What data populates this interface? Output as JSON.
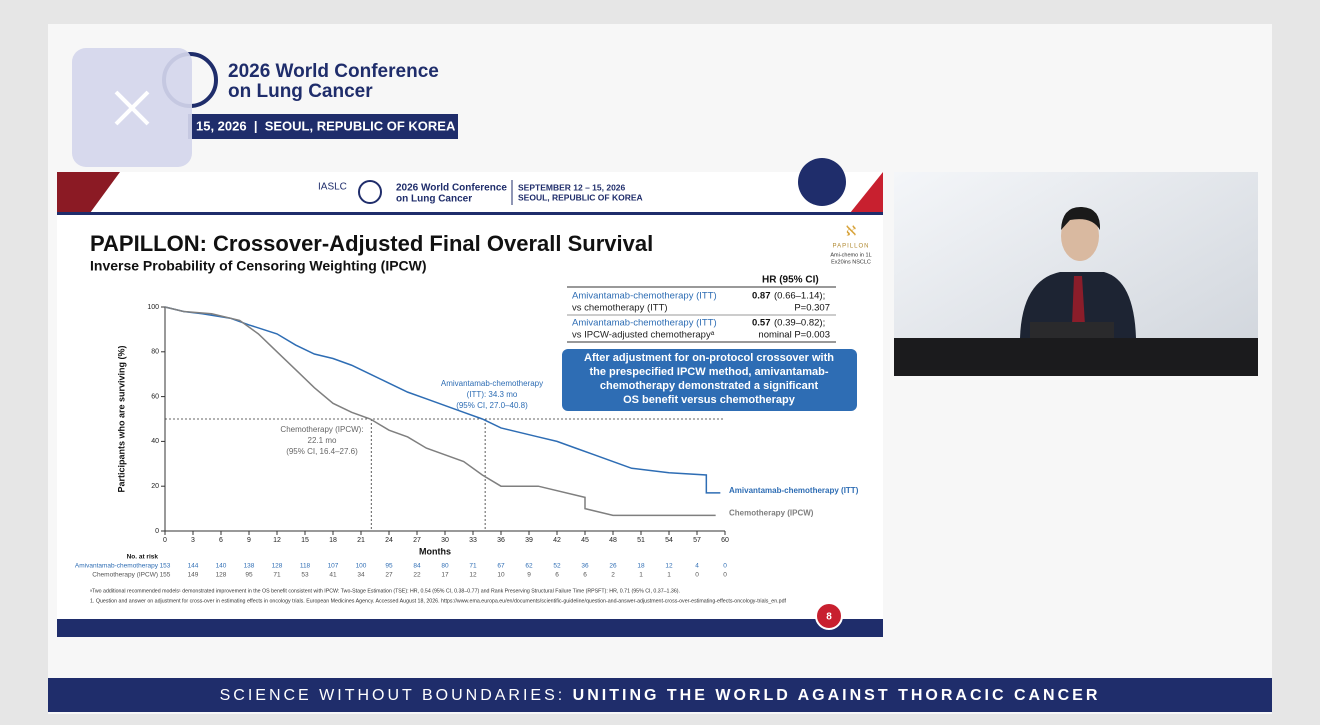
{
  "conference_header": {
    "title_lines": [
      "2026 World Conference",
      "on Lung Cancer"
    ],
    "date_bar": "15, 2026  |  SEOUL, REPUBLIC OF KOREA"
  },
  "slide": {
    "header": {
      "org": "IASLC",
      "conference_lines": [
        "2026 World Conference",
        "on Lung Cancer"
      ],
      "date_lines": [
        "SEPTEMBER 12 – 15, 2026",
        "SEOUL, REPUBLIC OF KOREA"
      ]
    },
    "title": "PAPILLON: Crossover-Adjusted Final Overall Survival",
    "subtitle": "Inverse Probability of Censoring Weighting (IPCW)",
    "logo": {
      "name": "PAPILLON",
      "lines": [
        "Ami-chemo in 1L",
        "Ex20ins NSCLC"
      ]
    },
    "hr_table": {
      "header": "HR (95% CI)",
      "rows": [
        {
          "comparison": [
            "Amivantamab-chemotherapy (ITT)",
            "vs chemotherapy (ITT)"
          ],
          "hr": "0.87",
          "ci": "(0.66–1.14);",
          "p": "P=0.307"
        },
        {
          "comparison": [
            "Amivantamab-chemotherapy (ITT)",
            "vs IPCW-adjusted chemotherapyᵃ"
          ],
          "hr": "0.57",
          "ci": "(0.39–0.82);",
          "p": "nominal P=0.003"
        }
      ]
    },
    "callout_lines": [
      "After adjustment for on-protocol crossover with",
      "the prespecified IPCW method, amivantamab-",
      "chemotherapy demonstrated a significant",
      "OS benefit versus chemotherapy"
    ],
    "footnotes": [
      "ᵃTwo additional recommended models¹ demonstrated improvement in the OS benefit consistent with IPCW: Two-Stage Estimation (TSE): HR, 0.54 (95% CI, 0.38–0.77) and Rank Preserving Structural Failure Time (RPSFT): HR, 0.71 (95% CI, 0.37–1.36).",
      "1. Question and answer on adjustment for cross-over in estimating effects in oncology trials. European Medicines Agency. Accessed August 18, 2026. https://www.ema.europa.eu/en/documents/scientific-guideline/question-and-answer-adjustment-cross-over-estimating-effects-oncology-trials_en.pdf"
    ],
    "page_number": "8"
  },
  "chart_data": {
    "type": "line",
    "xlabel": "Months",
    "ylabel": "Participants who are surviving (%)",
    "xlim": [
      0,
      60
    ],
    "ylim": [
      0,
      100
    ],
    "xticks": [
      0,
      3,
      6,
      9,
      12,
      15,
      18,
      21,
      24,
      27,
      30,
      33,
      36,
      39,
      42,
      45,
      48,
      51,
      54,
      57,
      60
    ],
    "yticks": [
      0,
      20,
      40,
      60,
      80,
      100
    ],
    "median_level": 50,
    "at_risk_title": "No. at risk",
    "series": [
      {
        "name": "Amivantamab-chemotherapy (ITT)",
        "color": "#2e6db4",
        "x": [
          0,
          2,
          4,
          7,
          9,
          12,
          14,
          16,
          18,
          20,
          22,
          24,
          26,
          28,
          30,
          32,
          34,
          36,
          38,
          40,
          42,
          44,
          46,
          48,
          50,
          52,
          54,
          58,
          58,
          59.5
        ],
        "values": [
          100,
          98,
          97,
          95,
          92,
          88,
          83,
          79,
          77,
          74,
          70,
          66,
          62,
          59,
          56,
          53,
          50,
          46,
          44,
          42,
          40,
          37,
          34,
          31,
          28,
          27,
          26,
          25,
          17,
          17
        ],
        "median": 34.3,
        "annotation": [
          "Amivantamab-chemotherapy",
          "(ITT): 34.3 mo",
          "(95% CI, 27.0–40.8)"
        ],
        "at_risk_label": "Amivantamab-chemotherapy",
        "at_risk": [
          "153",
          "144",
          "140",
          "138",
          "128",
          "118",
          "107",
          "100",
          "95",
          "84",
          "80",
          "71",
          "67",
          "62",
          "52",
          "36",
          "26",
          "18",
          "12",
          "4",
          "0"
        ]
      },
      {
        "name": "Chemotherapy (IPCW)",
        "color": "#7f7f7f",
        "x": [
          0,
          2,
          5,
          8,
          10,
          12,
          14,
          16,
          18,
          20,
          22,
          24,
          26,
          28,
          30,
          32,
          34,
          36,
          40,
          45,
          45,
          48,
          59
        ],
        "values": [
          100,
          98,
          97,
          94,
          88,
          80,
          72,
          64,
          57,
          53,
          50,
          45,
          42,
          37,
          34,
          31,
          25,
          20,
          20,
          15,
          10,
          7,
          7
        ],
        "median": 22.1,
        "annotation": [
          "Chemotherapy (IPCW):",
          "22.1 mo",
          "(95% CI, 16.4–27.6)"
        ],
        "at_risk_label": "Chemotherapy (IPCW)",
        "at_risk": [
          "155",
          "149",
          "128",
          "95",
          "71",
          "53",
          "41",
          "34",
          "27",
          "22",
          "17",
          "12",
          "10",
          "9",
          "6",
          "6",
          "2",
          "1",
          "1",
          "0",
          "0"
        ]
      }
    ]
  },
  "banner": {
    "light": "SCIENCE WITHOUT BOUNDARIES:",
    "bold": "UNITING THE WORLD AGAINST THORACIC CANCER"
  }
}
